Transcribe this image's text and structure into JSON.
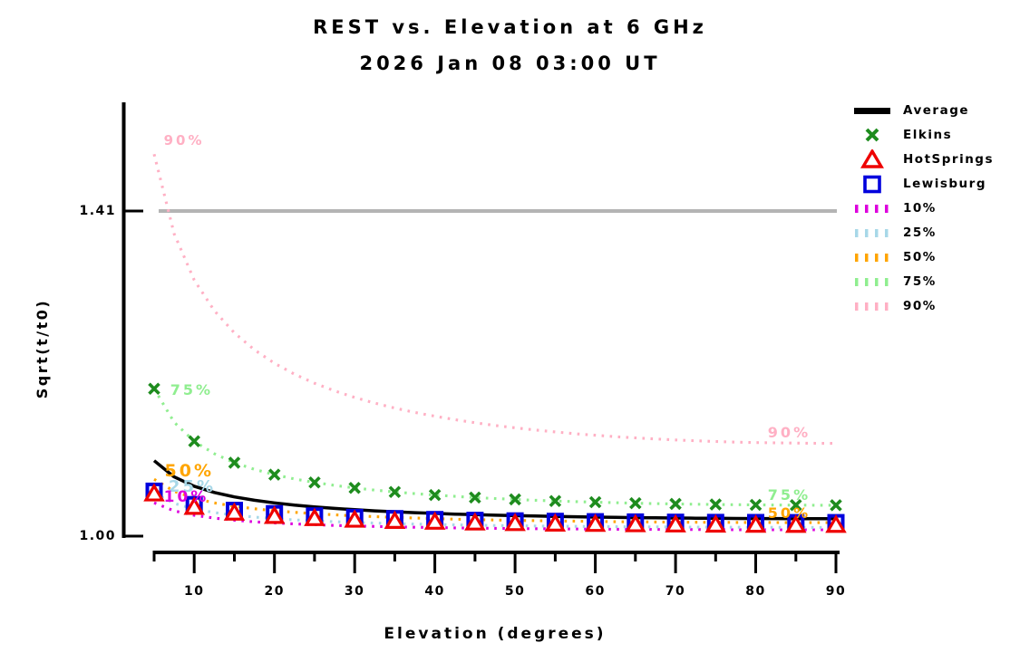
{
  "chart_data": {
    "type": "line",
    "title": "REST vs. Elevation at 6 GHz",
    "subtitle": "2026 Jan 08 03:00 UT",
    "xlabel": "Elevation (degrees)",
    "ylabel": "Sqrt(t/t0)",
    "xlim": [
      5,
      90
    ],
    "ylim": [
      1.0,
      1.55
    ],
    "x_major_ticks": [
      10,
      20,
      30,
      40,
      50,
      60,
      70,
      80,
      90
    ],
    "x_minor_ticks": [
      5,
      15,
      25,
      35,
      45,
      55,
      65,
      75,
      85
    ],
    "y_ticks": [
      {
        "value": 1.0,
        "label": "1.00"
      },
      {
        "value": 1.41,
        "label": "1.41"
      }
    ],
    "reference_line": {
      "value": 1.41,
      "color": "#b4b4b4"
    },
    "x_curve": [
      5,
      7.5,
      10,
      12.5,
      15,
      17.5,
      20,
      22.5,
      25,
      27.5,
      30,
      32.5,
      35,
      37.5,
      40,
      42.5,
      45,
      47.5,
      50,
      52.5,
      55,
      57.5,
      60,
      62.5,
      65,
      67.5,
      70,
      72.5,
      75,
      77.5,
      80,
      82.5,
      85,
      87.5,
      90
    ],
    "x_markers": [
      5,
      10,
      15,
      20,
      25,
      30,
      35,
      40,
      45,
      50,
      55,
      60,
      65,
      70,
      75,
      80,
      85,
      90
    ],
    "series": [
      {
        "name": "10%",
        "style": "dotted",
        "color": "#dd00dd",
        "values": [
          1.042,
          1.0319,
          1.0263,
          1.0227,
          1.0201,
          1.0181,
          1.0166,
          1.0154,
          1.0144,
          1.0135,
          1.0128,
          1.0122,
          1.0117,
          1.0112,
          1.0108,
          1.0104,
          1.0101,
          1.0098,
          1.0096,
          1.0094,
          1.0092,
          1.009,
          1.0088,
          1.0087,
          1.0086,
          1.0084,
          1.0083,
          1.0083,
          1.0082,
          1.0081,
          1.0081,
          1.008,
          1.008,
          1.008,
          1.008
        ]
      },
      {
        "name": "25%",
        "style": "dotted",
        "color": "#a8d8e8",
        "values": [
          1.0537,
          1.0413,
          1.0343,
          1.0297,
          1.0265,
          1.024,
          1.0221,
          1.0205,
          1.0193,
          1.0182,
          1.0173,
          1.0165,
          1.0158,
          1.0152,
          1.0147,
          1.0142,
          1.0138,
          1.0134,
          1.0131,
          1.0128,
          1.0125,
          1.0123,
          1.0121,
          1.0119,
          1.0117,
          1.0116,
          1.0115,
          1.0113,
          1.0113,
          1.0112,
          1.0111,
          1.0111,
          1.011,
          1.011,
          1.011
        ]
      },
      {
        "name": "50%",
        "style": "dotted",
        "color": "#ffa500",
        "values": [
          1.0717,
          1.0565,
          1.0478,
          1.0419,
          1.0377,
          1.0345,
          1.032,
          1.03,
          1.0283,
          1.0268,
          1.0256,
          1.0245,
          1.0236,
          1.0228,
          1.0221,
          1.0214,
          1.0209,
          1.0203,
          1.0199,
          1.0195,
          1.0191,
          1.0188,
          1.0185,
          1.0182,
          1.018,
          1.0178,
          1.0176,
          1.0175,
          1.0174,
          1.0172,
          1.0172,
          1.0171,
          1.017,
          1.017,
          1.017
        ]
      },
      {
        "name": "75%",
        "style": "dotted",
        "color": "#90ee90",
        "values": [
          1.1859,
          1.1436,
          1.1196,
          1.1039,
          1.0926,
          1.0842,
          1.0775,
          1.0721,
          1.0677,
          1.064,
          1.0608,
          1.058,
          1.0557,
          1.0536,
          1.0518,
          1.0501,
          1.0487,
          1.0474,
          1.0463,
          1.0452,
          1.0443,
          1.0435,
          1.0428,
          1.0421,
          1.0415,
          1.041,
          1.0406,
          1.0402,
          1.0399,
          1.0396,
          1.0394,
          1.0392,
          1.0391,
          1.039,
          1.039
        ]
      },
      {
        "name": "90%",
        "style": "dotted",
        "color": "#ffb0c4",
        "values": [
          1.4817,
          1.3812,
          1.323,
          1.2843,
          1.2563,
          1.2349,
          1.218,
          1.2042,
          1.1928,
          1.1832,
          1.1749,
          1.1678,
          1.1615,
          1.156,
          1.1512,
          1.1469,
          1.143,
          1.1396,
          1.1366,
          1.1338,
          1.1314,
          1.1291,
          1.1272,
          1.1254,
          1.1239,
          1.1225,
          1.1213,
          1.1203,
          1.1194,
          1.1186,
          1.118,
          1.1176,
          1.1173,
          1.1171,
          1.117
        ]
      },
      {
        "name": "Average",
        "style": "solid",
        "color": "#000000",
        "values": [
          1.0951,
          1.0747,
          1.0629,
          1.0551,
          1.0495,
          1.0452,
          1.0419,
          1.0391,
          1.0369,
          1.035,
          1.0333,
          1.0319,
          1.0307,
          1.0296,
          1.0287,
          1.0278,
          1.0271,
          1.0264,
          1.0258,
          1.0253,
          1.0248,
          1.0244,
          1.024,
          1.0236,
          1.0233,
          1.0231,
          1.0228,
          1.0226,
          1.0225,
          1.0223,
          1.0222,
          1.0221,
          1.022,
          1.022,
          1.022
        ]
      },
      {
        "name": "Lewisburg",
        "style": "markers",
        "marker": "square",
        "color": "#0000dd",
        "values": [
          1.0566,
          1.0397,
          1.0324,
          1.0283,
          1.0255,
          1.0235,
          1.022,
          1.0209,
          1.0199,
          1.0192,
          1.0186,
          1.0182,
          1.0178,
          1.0175,
          1.0173,
          1.0171,
          1.017,
          1.017
        ]
      },
      {
        "name": "HotSprings",
        "style": "markers",
        "marker": "triangle",
        "color": "#ee0000",
        "values": [
          1.0536,
          1.0367,
          1.0294,
          1.0253,
          1.0225,
          1.0205,
          1.019,
          1.0179,
          1.0169,
          1.0162,
          1.0156,
          1.0152,
          1.0148,
          1.0145,
          1.0143,
          1.0141,
          1.014,
          1.014
        ]
      },
      {
        "name": "Elkins",
        "style": "markers",
        "marker": "x",
        "color": "#1e8c1e",
        "values": [
          1.1859,
          1.1196,
          1.0926,
          1.0775,
          1.0677,
          1.0608,
          1.0557,
          1.0518,
          1.0487,
          1.0463,
          1.0443,
          1.0428,
          1.0415,
          1.0406,
          1.0399,
          1.0394,
          1.0391,
          1.039
        ]
      }
    ],
    "curve_labels": [
      {
        "text": "90%",
        "color": "#ffb0c4",
        "el": 6.2,
        "value": 1.499,
        "size": 15
      },
      {
        "text": "75%",
        "color": "#90ee90",
        "el": 7.0,
        "value": 1.184,
        "size": 16
      },
      {
        "text": "50%",
        "color": "#ffa500",
        "el": 6.3,
        "value": 1.081,
        "size": 19
      },
      {
        "text": "25%",
        "color": "#a8d8e8",
        "el": 6.8,
        "value": 1.062,
        "size": 18
      },
      {
        "text": "10%",
        "color": "#dd00dd",
        "el": 6.2,
        "value": 1.048,
        "size": 17
      },
      {
        "text": "90%",
        "color": "#ffb0c4",
        "el": 81.5,
        "value": 1.13,
        "size": 16
      },
      {
        "text": "75%",
        "color": "#90ee90",
        "el": 81.5,
        "value": 1.051,
        "size": 16
      },
      {
        "text": "50%",
        "color": "#ffa500",
        "el": 81.5,
        "value": 1.029,
        "size": 16
      }
    ],
    "legend": {
      "position": "right",
      "items": [
        {
          "label": "Average",
          "swatch": "line",
          "color": "#000000"
        },
        {
          "label": "Elkins",
          "swatch": "x",
          "color": "#1e8c1e"
        },
        {
          "label": "HotSprings",
          "swatch": "triangle",
          "color": "#ee0000"
        },
        {
          "label": "Lewisburg",
          "swatch": "square",
          "color": "#0000dd"
        },
        {
          "label": "10%",
          "swatch": "dots",
          "color": "#dd00dd"
        },
        {
          "label": "25%",
          "swatch": "dots",
          "color": "#a8d8e8"
        },
        {
          "label": "50%",
          "swatch": "dots",
          "color": "#ffa500"
        },
        {
          "label": "75%",
          "swatch": "dots",
          "color": "#90ee90"
        },
        {
          "label": "90%",
          "swatch": "dots",
          "color": "#ffb0c4"
        }
      ]
    }
  }
}
